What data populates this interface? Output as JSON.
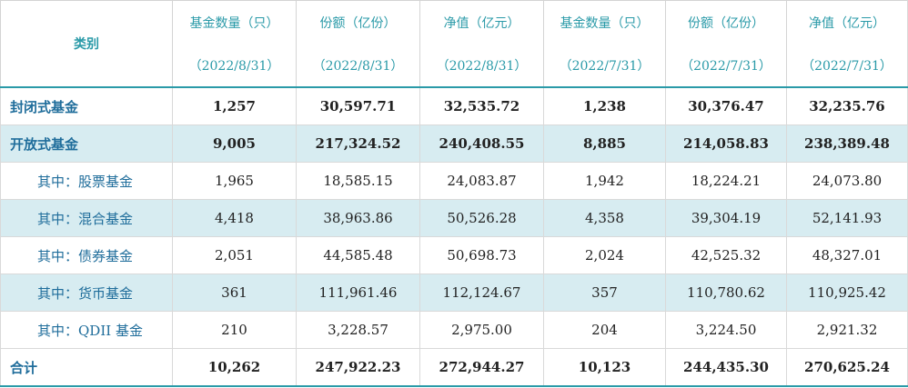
{
  "table": {
    "category_header": "类别",
    "headers": [
      {
        "label": "基金数量（只）",
        "date": "（2022/8/31）"
      },
      {
        "label": "份额（亿份）",
        "date": "（2022/8/31）"
      },
      {
        "label": "净值（亿元）",
        "date": "（2022/8/31）"
      },
      {
        "label": "基金数量（只）",
        "date": "（2022/7/31）"
      },
      {
        "label": "份额（亿份）",
        "date": "（2022/7/31）"
      },
      {
        "label": "净值（亿元）",
        "date": "（2022/7/31）"
      }
    ],
    "rows": [
      {
        "name": "封闭式基金",
        "values": [
          "1,257",
          "30,597.71",
          "32,535.72",
          "1,238",
          "30,376.47",
          "32,235.76"
        ]
      },
      {
        "name": "开放式基金",
        "values": [
          "9,005",
          "217,324.52",
          "240,408.55",
          "8,885",
          "214,058.83",
          "238,389.48"
        ]
      },
      {
        "name": "其中：股票基金",
        "values": [
          "1,965",
          "18,585.15",
          "24,083.87",
          "1,942",
          "18,224.21",
          "24,073.80"
        ]
      },
      {
        "name": "其中：混合基金",
        "values": [
          "4,418",
          "38,963.86",
          "50,526.28",
          "4,358",
          "39,304.19",
          "52,141.93"
        ]
      },
      {
        "name": "其中：债券基金",
        "values": [
          "2,051",
          "44,585.48",
          "50,698.73",
          "2,024",
          "42,525.32",
          "48,327.01"
        ]
      },
      {
        "name": "其中：货币基金",
        "values": [
          "361",
          "111,961.46",
          "112,124.67",
          "357",
          "110,780.62",
          "110,925.42"
        ]
      },
      {
        "name": "其中：QDII 基金",
        "values": [
          "210",
          "3,228.57",
          "2,975.00",
          "204",
          "3,224.50",
          "2,921.32"
        ]
      },
      {
        "name": "合计",
        "values": [
          "10,262",
          "247,922.23",
          "272,944.27",
          "10,123",
          "244,435.30",
          "270,625.24"
        ]
      }
    ]
  },
  "colors": {
    "accent": "#2a9aa8",
    "shade": "#d7ecf1"
  }
}
